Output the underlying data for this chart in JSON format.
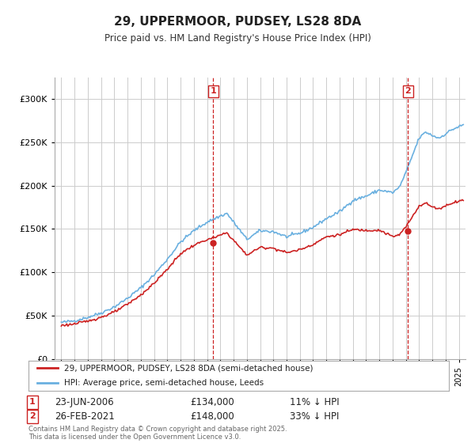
{
  "title": "29, UPPERMOOR, PUDSEY, LS28 8DA",
  "subtitle": "Price paid vs. HM Land Registry's House Price Index (HPI)",
  "legend_line1": "29, UPPERMOOR, PUDSEY, LS28 8DA (semi-detached house)",
  "legend_line2": "HPI: Average price, semi-detached house, Leeds",
  "annotation1": {
    "label": "1",
    "date_str": "23-JUN-2006",
    "price": "£134,000",
    "hpi_diff": "11% ↓ HPI"
  },
  "annotation2": {
    "label": "2",
    "date_str": "26-FEB-2021",
    "price": "£148,000",
    "hpi_diff": "33% ↓ HPI"
  },
  "footer": "Contains HM Land Registry data © Crown copyright and database right 2025.\nThis data is licensed under the Open Government Licence v3.0.",
  "hpi_color": "#6ab0e0",
  "price_color": "#cc2222",
  "vline_color": "#cc2222",
  "background_color": "#ffffff",
  "grid_color": "#cccccc",
  "ylim": [
    0,
    325000
  ],
  "yticks": [
    0,
    50000,
    100000,
    150000,
    200000,
    250000,
    300000
  ],
  "xlim_start": 1994.5,
  "xlim_end": 2025.5,
  "marker1_x": 2006.47,
  "marker2_x": 2021.15,
  "marker1_y": 134000,
  "marker2_y": 148000,
  "hpi_key_x": [
    1995.0,
    1996.0,
    1997.0,
    1998.0,
    1999.0,
    2000.0,
    2001.0,
    2002.0,
    2003.0,
    2004.0,
    2005.0,
    2006.0,
    2007.0,
    2007.5,
    2008.0,
    2009.0,
    2010.0,
    2011.0,
    2012.0,
    2013.0,
    2014.0,
    2015.0,
    2016.0,
    2017.0,
    2018.0,
    2019.0,
    2020.0,
    2020.5,
    2021.0,
    2021.5,
    2022.0,
    2022.5,
    2023.0,
    2023.5,
    2024.0,
    2024.5,
    2025.3
  ],
  "hpi_key_y": [
    42000,
    44000,
    48000,
    53000,
    60000,
    70000,
    82000,
    97000,
    115000,
    135000,
    148000,
    158000,
    165000,
    168000,
    158000,
    138000,
    148000,
    147000,
    141000,
    145000,
    152000,
    162000,
    170000,
    183000,
    188000,
    195000,
    192000,
    198000,
    215000,
    235000,
    255000,
    262000,
    258000,
    255000,
    260000,
    265000,
    270000
  ]
}
